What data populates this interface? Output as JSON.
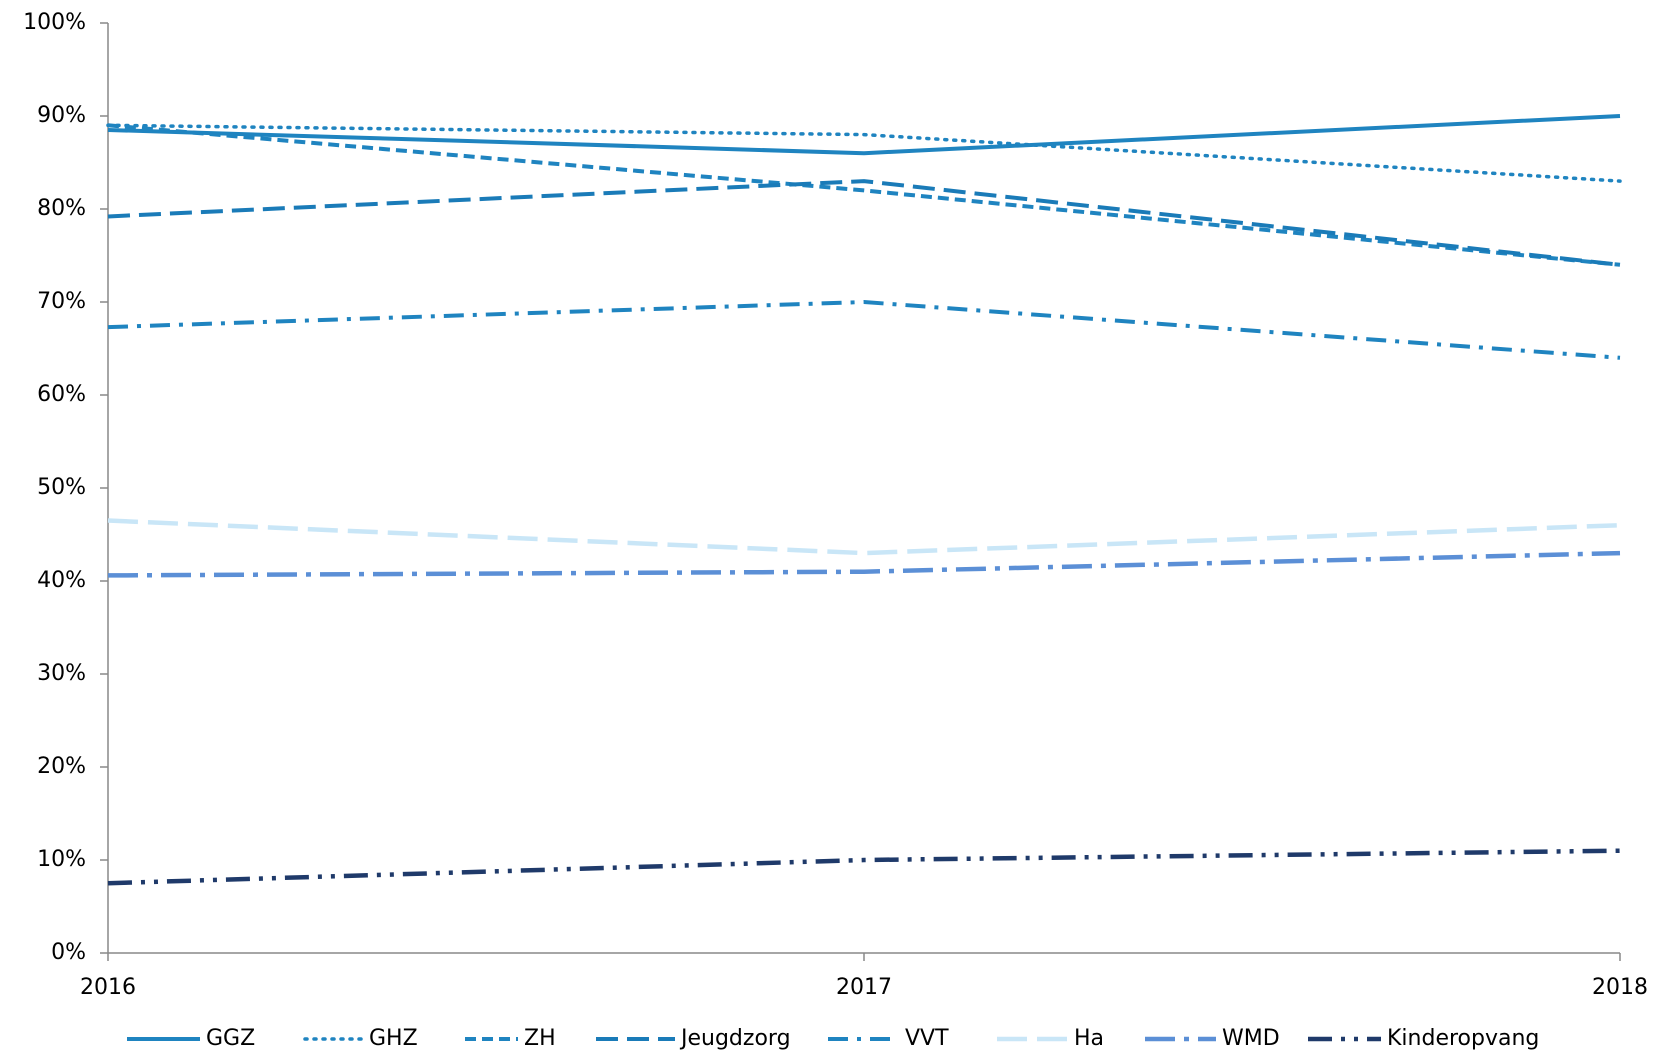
{
  "chart_data": {
    "type": "line",
    "categories": [
      "2016",
      "2017",
      "2018"
    ],
    "ylim": [
      0,
      100
    ],
    "yticks": [
      {
        "value": 0,
        "label": "0%"
      },
      {
        "value": 10,
        "label": "10%"
      },
      {
        "value": 20,
        "label": "20%"
      },
      {
        "value": 30,
        "label": "30%"
      },
      {
        "value": 40,
        "label": "40%"
      },
      {
        "value": 50,
        "label": "50%"
      },
      {
        "value": 60,
        "label": "60%"
      },
      {
        "value": 70,
        "label": "70%"
      },
      {
        "value": 80,
        "label": "80%"
      },
      {
        "value": 90,
        "label": "90%"
      },
      {
        "value": 100,
        "label": "100%"
      }
    ],
    "legend": "bottom",
    "series": [
      {
        "name": "GGZ",
        "color": "#1f84c0",
        "values": [
          88.5,
          86,
          90
        ]
      },
      {
        "name": "GHZ",
        "color": "#1f84c0",
        "values": [
          89,
          88,
          83
        ]
      },
      {
        "name": "ZH",
        "color": "#1f84c0",
        "values": [
          89,
          82,
          74
        ]
      },
      {
        "name": "Jeugdzorg",
        "color": "#1a7bb8",
        "values": [
          79.2,
          83,
          74
        ]
      },
      {
        "name": "VVT",
        "color": "#1f84c0",
        "values": [
          67.3,
          70,
          64
        ]
      },
      {
        "name": "Ha",
        "color": "#c9e6f7",
        "values": [
          46.5,
          43,
          46
        ]
      },
      {
        "name": "WMD",
        "color": "#5b8fd6",
        "values": [
          40.6,
          41,
          43
        ]
      },
      {
        "name": "Kinderopvang",
        "color": "#1f3a6a",
        "values": [
          7.5,
          10,
          11
        ]
      }
    ]
  }
}
